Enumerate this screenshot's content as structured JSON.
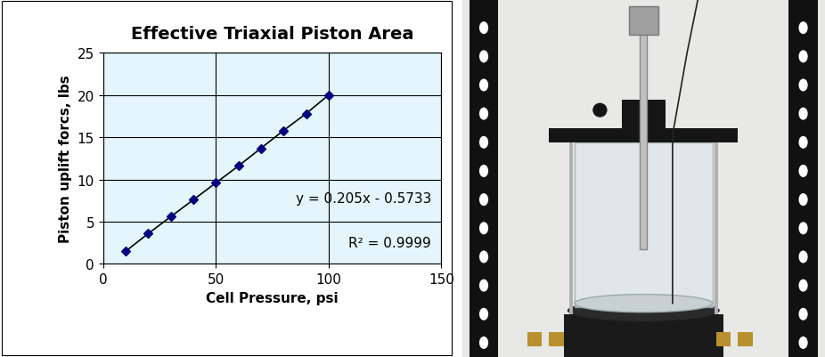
{
  "chart_data": {
    "type": "line",
    "title": "Effective Triaxial Piston Area",
    "x_label": "Cell Pressure, psi",
    "y_label": "Piston uplift forcs, lbs",
    "x": [
      10,
      20,
      30,
      40,
      50,
      60,
      70,
      80,
      90,
      100
    ],
    "values": [
      1.5,
      3.6,
      5.6,
      7.6,
      9.6,
      11.6,
      13.7,
      15.8,
      17.8,
      20.0
    ],
    "color": "#000080",
    "marker": "diamond",
    "line_style": "solid",
    "xlim": [
      0,
      150
    ],
    "xticks": [
      0,
      50,
      100,
      150
    ],
    "ylim": [
      0,
      25
    ],
    "yticks": [
      0,
      5,
      10,
      15,
      20,
      25
    ],
    "grid": true,
    "annotations": [
      "y = 0.205x - 0.5733",
      "R² = 0.9999"
    ]
  }
}
